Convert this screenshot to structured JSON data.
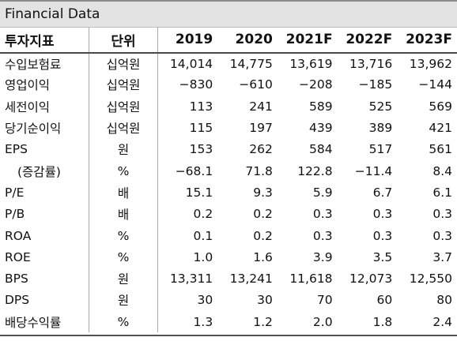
{
  "title": "Financial Data",
  "headers": [
    "투자지표",
    "단위",
    "2019",
    "2020",
    "2021F",
    "2022F",
    "2023F"
  ],
  "rows": [
    {
      "item": "수입보험료",
      "unit": "십억원",
      "values": [
        "14,014",
        "14,775",
        "13,619",
        "13,716",
        "13,962"
      ]
    },
    {
      "item": "영업이익",
      "unit": "십억원",
      "values": [
        "−830",
        "−610",
        "−208",
        "−185",
        "−144"
      ]
    },
    {
      "item": "세전이익",
      "unit": "십억원",
      "values": [
        "113",
        "241",
        "589",
        "525",
        "569"
      ]
    },
    {
      "item": "당기순이익",
      "unit": "십억원",
      "values": [
        "115",
        "197",
        "439",
        "389",
        "421"
      ]
    },
    {
      "item": "EPS",
      "unit": "원",
      "values": [
        "153",
        "262",
        "584",
        "517",
        "561"
      ]
    },
    {
      "item": "(증감률)",
      "unit": "%",
      "values": [
        "−68.1",
        "71.8",
        "122.8",
        "−11.4",
        "8.4"
      ]
    },
    {
      "item": "P/E",
      "unit": "배",
      "values": [
        "15.1",
        "9.3",
        "5.9",
        "6.7",
        "6.1"
      ]
    },
    {
      "item": "P/B",
      "unit": "배",
      "values": [
        "0.2",
        "0.2",
        "0.3",
        "0.3",
        "0.3"
      ]
    },
    {
      "item": "ROA",
      "unit": "%",
      "values": [
        "0.1",
        "0.2",
        "0.3",
        "0.3",
        "0.3"
      ]
    },
    {
      "item": "ROE",
      "unit": "%",
      "values": [
        "1.0",
        "1.6",
        "3.9",
        "3.5",
        "3.7"
      ]
    },
    {
      "item": "BPS",
      "unit": "원",
      "values": [
        "13,311",
        "13,241",
        "11,618",
        "12,073",
        "12,550"
      ]
    },
    {
      "item": "DPS",
      "unit": "원",
      "values": [
        "30",
        "30",
        "70",
        "60",
        "80"
      ]
    },
    {
      "item": "배당수익률",
      "unit": "%",
      "values": [
        "1.3",
        "1.2",
        "2.0",
        "1.8",
        "2.4"
      ]
    }
  ]
}
